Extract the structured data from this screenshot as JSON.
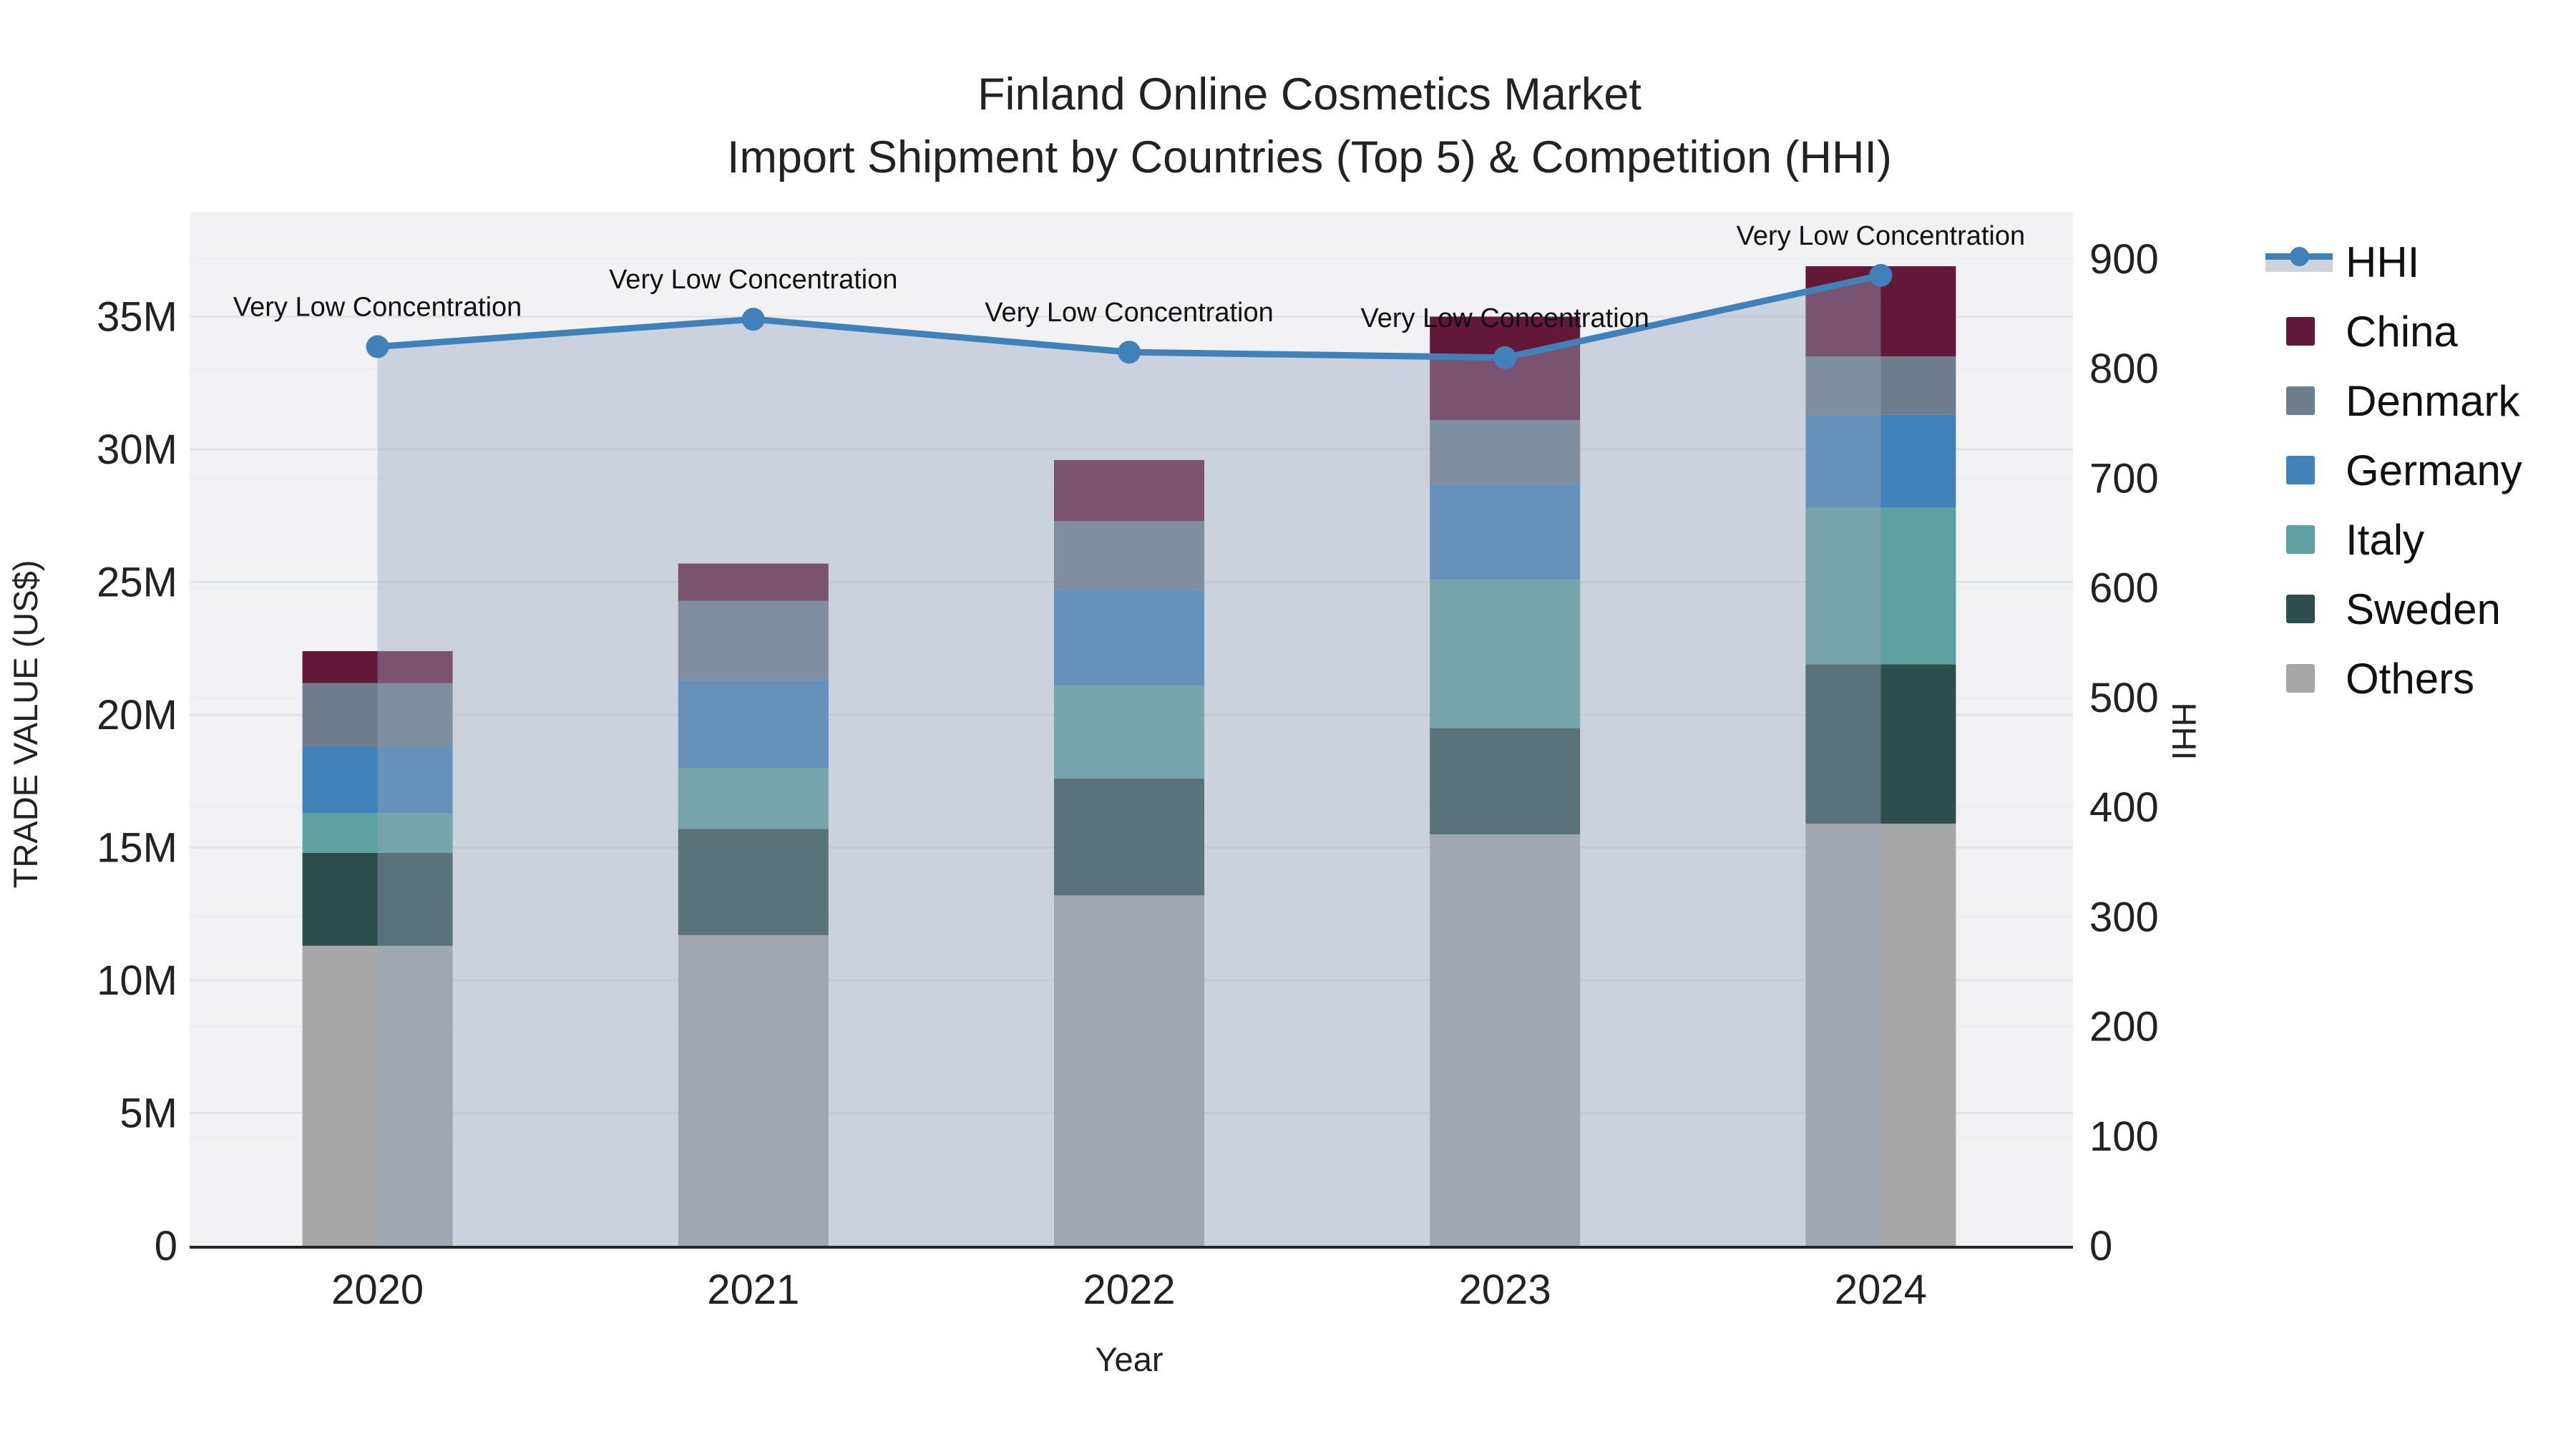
{
  "title": {
    "line1": "Finland Online Cosmetics Market",
    "line2": "Import Shipment by Countries (Top 5) & Competition (HHI)"
  },
  "colors": {
    "china": "#641839",
    "denmark": "#6f7e8e",
    "germany": "#4282bb",
    "italy": "#5fa0a0",
    "sweden": "#2e4d4d",
    "others": "#a7a7a7",
    "hhi_line": "#4181b9",
    "hhi_fill": "rgba(150,166,188,0.42)",
    "plot_bg": "#f2f2f4",
    "grid_left": "#e2e4e8",
    "grid_right": "#eceef1",
    "axis_line": "#262626",
    "text": "#222222"
  },
  "chart_data": {
    "type": "bar+line",
    "categories": [
      "2020",
      "2021",
      "2022",
      "2023",
      "2024"
    ],
    "bar_unit": "M US$",
    "series": [
      {
        "name": "Others",
        "color": "#a7a7a7",
        "values": [
          11.3,
          11.7,
          13.2,
          15.5,
          15.9
        ]
      },
      {
        "name": "Sweden",
        "color": "#2e4d4d",
        "values": [
          3.5,
          4.0,
          4.4,
          4.0,
          6.0
        ]
      },
      {
        "name": "Italy",
        "color": "#5fa0a0",
        "values": [
          1.5,
          2.3,
          3.5,
          5.6,
          5.9
        ]
      },
      {
        "name": "Germany",
        "color": "#4282bb",
        "values": [
          2.5,
          3.3,
          3.6,
          3.6,
          3.5
        ]
      },
      {
        "name": "Denmark",
        "color": "#6f7e8e",
        "values": [
          2.4,
          3.0,
          2.6,
          2.4,
          2.2
        ]
      },
      {
        "name": "China",
        "color": "#641839",
        "values": [
          1.2,
          1.4,
          2.3,
          3.9,
          3.4
        ]
      }
    ],
    "bar_totals": [
      22.4,
      25.7,
      29.6,
      35.0,
      36.9
    ],
    "line_series": {
      "name": "HHI",
      "color": "#4181b9",
      "fill": "rgba(150,166,188,0.42)",
      "values": [
        820,
        845,
        815,
        810,
        885
      ]
    },
    "annotations": [
      {
        "x": "2020",
        "text": "Very Low Concentration"
      },
      {
        "x": "2021",
        "text": "Very Low Concentration"
      },
      {
        "x": "2022",
        "text": "Very Low Concentration"
      },
      {
        "x": "2023",
        "text": "Very Low Concentration"
      },
      {
        "x": "2024",
        "text": "Very Low Concentration"
      }
    ],
    "y_left": {
      "label": "TRADE VALUE (US$)",
      "tick_values": [
        0,
        5,
        10,
        15,
        20,
        25,
        30,
        35
      ],
      "tick_labels": [
        "0",
        "5M",
        "10M",
        "15M",
        "20M",
        "25M",
        "30M",
        "35M"
      ],
      "range": [
        0,
        38.95
      ]
    },
    "y_right": {
      "label": "HHI",
      "tick_values": [
        0,
        100,
        200,
        300,
        400,
        500,
        600,
        700,
        800,
        900
      ],
      "tick_labels": [
        "0",
        "100",
        "200",
        "300",
        "400",
        "500",
        "600",
        "700",
        "800",
        "900"
      ],
      "range": [
        0,
        943
      ]
    },
    "x_label": "Year",
    "grid": true,
    "legend_position": "right"
  },
  "legend": {
    "items": [
      {
        "label": "HHI",
        "swatch": "line",
        "color": "#4181b9"
      },
      {
        "label": "China",
        "swatch": "square",
        "color": "#641839"
      },
      {
        "label": "Denmark",
        "swatch": "square",
        "color": "#6f7e8e"
      },
      {
        "label": "Germany",
        "swatch": "square",
        "color": "#4282bb"
      },
      {
        "label": "Italy",
        "swatch": "square",
        "color": "#5fa0a0"
      },
      {
        "label": "Sweden",
        "swatch": "square",
        "color": "#2e4d4d"
      },
      {
        "label": "Others",
        "swatch": "square",
        "color": "#a7a7a7"
      }
    ]
  }
}
